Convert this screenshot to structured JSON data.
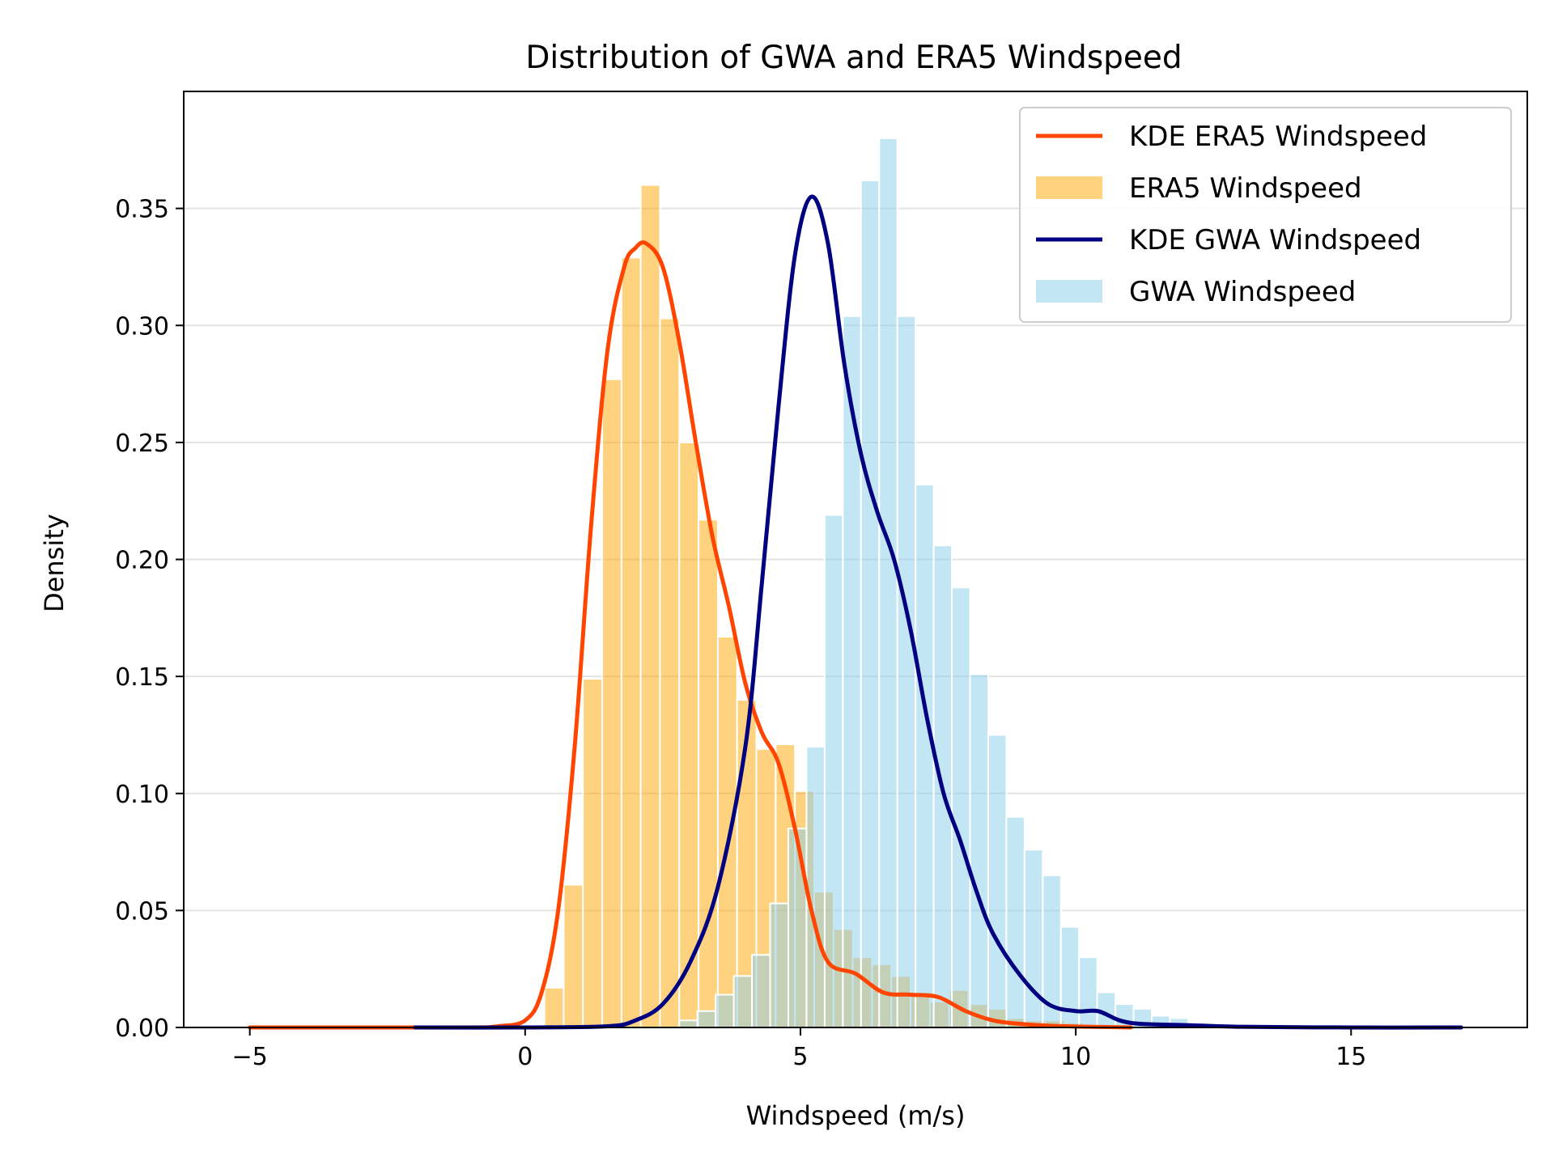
{
  "chart_data": {
    "type": "histogram+kde",
    "title": "Distribution of GWA and ERA5 Windspeed",
    "xlabel": "Windspeed (m/s)",
    "ylabel": "Density",
    "xlim": [
      -6.2,
      18.2
    ],
    "ylim": [
      0,
      0.4
    ],
    "xticks": [
      -5,
      0,
      5,
      10,
      15
    ],
    "xtick_labels": [
      "−5",
      "0",
      "5",
      "10",
      "15"
    ],
    "yticks": [
      0,
      0.05,
      0.1,
      0.15,
      0.2,
      0.25,
      0.3,
      0.35
    ],
    "ytick_labels": [
      "0.00",
      "0.05",
      "0.10",
      "0.15",
      "0.20",
      "0.25",
      "0.30",
      "0.35"
    ],
    "grid": "horizontal",
    "legend_position": "top-right",
    "legend": [
      {
        "label": "KDE ERA5 Windspeed",
        "kind": "line",
        "color": "#ff4500"
      },
      {
        "label": "ERA5 Windspeed",
        "kind": "patch",
        "color": "#ffa500"
      },
      {
        "label": "KDE GWA Windspeed",
        "kind": "line",
        "color": "#000080"
      },
      {
        "label": "GWA Windspeed",
        "kind": "patch",
        "color": "#87ceeb"
      }
    ],
    "series": [
      {
        "name": "ERA5 Windspeed",
        "kind": "histogram",
        "color": "#ffa500",
        "opacity": 0.5,
        "bin_width": 0.35,
        "bin_start": 0.35,
        "values": [
          0.017,
          0.061,
          0.149,
          0.277,
          0.329,
          0.36,
          0.303,
          0.25,
          0.217,
          0.167,
          0.14,
          0.119,
          0.121,
          0.101,
          0.058,
          0.042,
          0.03,
          0.027,
          0.022,
          0.015,
          0.011,
          0.016,
          0.01,
          0.008,
          0.004,
          0.003,
          0.003,
          0.002
        ]
      },
      {
        "name": "GWA Windspeed",
        "kind": "histogram",
        "color": "#87ceeb",
        "opacity": 0.5,
        "bin_width": 0.33,
        "bin_start": 2.8,
        "values": [
          0.003,
          0.007,
          0.014,
          0.022,
          0.031,
          0.053,
          0.085,
          0.12,
          0.219,
          0.304,
          0.362,
          0.38,
          0.304,
          0.232,
          0.206,
          0.188,
          0.151,
          0.125,
          0.09,
          0.076,
          0.065,
          0.043,
          0.03,
          0.015,
          0.01,
          0.008,
          0.005,
          0.004,
          0.002,
          0.001
        ]
      },
      {
        "name": "KDE ERA5 Windspeed",
        "kind": "line",
        "color": "#ff4500",
        "x": [
          -5.0,
          -3.0,
          -1.0,
          -0.5,
          0.0,
          0.3,
          0.6,
          0.9,
          1.2,
          1.5,
          1.8,
          2.0,
          2.2,
          2.5,
          2.8,
          3.1,
          3.4,
          3.7,
          4.0,
          4.3,
          4.6,
          4.9,
          5.2,
          5.5,
          6.0,
          6.5,
          7.0,
          7.5,
          8.0,
          8.5,
          9.0,
          9.5,
          10.0,
          11.0
        ],
        "y": [
          0.0,
          0.0,
          0.0,
          0.0005,
          0.003,
          0.015,
          0.05,
          0.12,
          0.215,
          0.29,
          0.325,
          0.333,
          0.335,
          0.325,
          0.293,
          0.25,
          0.21,
          0.18,
          0.147,
          0.126,
          0.113,
          0.085,
          0.05,
          0.028,
          0.023,
          0.015,
          0.014,
          0.013,
          0.007,
          0.003,
          0.0015,
          0.0008,
          0.0004,
          0.0
        ]
      },
      {
        "name": "KDE GWA Windspeed",
        "kind": "line",
        "color": "#000080",
        "x": [
          -2.0,
          0.0,
          1.5,
          2.0,
          2.5,
          3.0,
          3.5,
          4.0,
          4.3,
          4.6,
          4.9,
          5.2,
          5.5,
          5.8,
          6.1,
          6.4,
          6.7,
          7.0,
          7.3,
          7.6,
          7.9,
          8.2,
          8.5,
          9.0,
          9.5,
          10.0,
          10.4,
          10.8,
          11.2,
          12.0,
          13.0,
          15.0,
          17.0
        ],
        "y": [
          0.0,
          0.0,
          0.0005,
          0.003,
          0.01,
          0.028,
          0.06,
          0.12,
          0.19,
          0.265,
          0.33,
          0.355,
          0.335,
          0.283,
          0.245,
          0.22,
          0.2,
          0.17,
          0.132,
          0.1,
          0.08,
          0.058,
          0.04,
          0.022,
          0.01,
          0.007,
          0.007,
          0.003,
          0.0015,
          0.001,
          0.0003,
          0.0,
          0.0
        ]
      }
    ]
  }
}
